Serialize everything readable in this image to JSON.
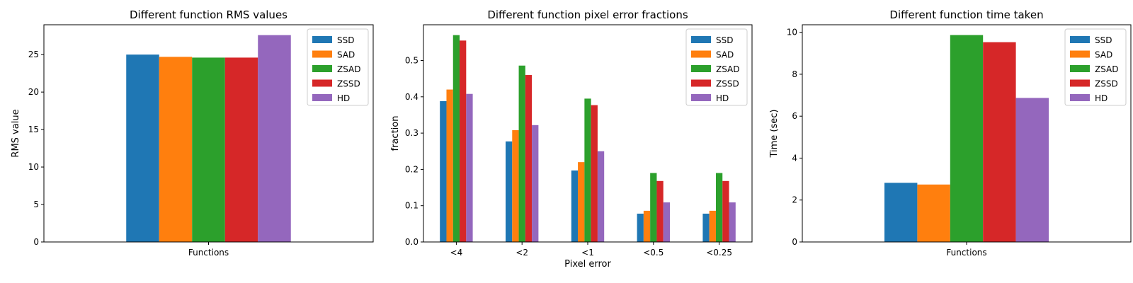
{
  "series_colors": [
    "#1f77b4",
    "#ff7f0e",
    "#2ca02c",
    "#d62728",
    "#9467bd"
  ],
  "chart_data": [
    {
      "type": "bar",
      "title": "Different function RMS values",
      "xlabel": "",
      "ylabel": "RMS value",
      "categories": [
        "Functions"
      ],
      "series": [
        {
          "name": "SSD",
          "values": [
            25.0
          ]
        },
        {
          "name": "SAD",
          "values": [
            24.7
          ]
        },
        {
          "name": "ZSAD",
          "values": [
            24.6
          ]
        },
        {
          "name": "ZSSD",
          "values": [
            24.6
          ]
        },
        {
          "name": "HD",
          "values": [
            27.6
          ]
        }
      ],
      "ylim": [
        0,
        28.98
      ],
      "yticks": [
        0,
        5,
        10,
        15,
        20,
        25
      ],
      "ytick_labels": [
        "0",
        "5",
        "10",
        "15",
        "20",
        "25"
      ],
      "legend": "top-right",
      "grid": false
    },
    {
      "type": "bar",
      "title": "Different function pixel error fractions",
      "xlabel": "Pixel error",
      "ylabel": "fraction",
      "categories": [
        "<4",
        "<2",
        "<1",
        "<0.5",
        "<0.25"
      ],
      "series": [
        {
          "name": "SSD",
          "values": [
            0.388,
            0.277,
            0.197,
            0.078,
            0.078
          ]
        },
        {
          "name": "SAD",
          "values": [
            0.42,
            0.308,
            0.22,
            0.086,
            0.086
          ]
        },
        {
          "name": "ZSAD",
          "values": [
            0.57,
            0.486,
            0.395,
            0.19,
            0.19
          ]
        },
        {
          "name": "ZSSD",
          "values": [
            0.555,
            0.46,
            0.377,
            0.168,
            0.168
          ]
        },
        {
          "name": "HD",
          "values": [
            0.408,
            0.322,
            0.25,
            0.109,
            0.109
          ]
        }
      ],
      "ylim": [
        0,
        0.5985
      ],
      "yticks": [
        0,
        0.1,
        0.2,
        0.3,
        0.4,
        0.5
      ],
      "ytick_labels": [
        "0.0",
        "0.1",
        "0.2",
        "0.3",
        "0.4",
        "0.5"
      ],
      "legend": "top-right",
      "grid": false
    },
    {
      "type": "bar",
      "title": "Different function time taken",
      "xlabel": "",
      "ylabel": "Time (sec)",
      "categories": [
        "Functions"
      ],
      "series": [
        {
          "name": "SSD",
          "values": [
            2.82
          ]
        },
        {
          "name": "SAD",
          "values": [
            2.74
          ]
        },
        {
          "name": "ZSAD",
          "values": [
            9.87
          ]
        },
        {
          "name": "ZSSD",
          "values": [
            9.53
          ]
        },
        {
          "name": "HD",
          "values": [
            6.87
          ]
        }
      ],
      "ylim": [
        0,
        10.36
      ],
      "yticks": [
        0,
        2,
        4,
        6,
        8,
        10
      ],
      "ytick_labels": [
        "0",
        "2",
        "4",
        "6",
        "8",
        "10"
      ],
      "legend": "top-right",
      "grid": false
    }
  ]
}
